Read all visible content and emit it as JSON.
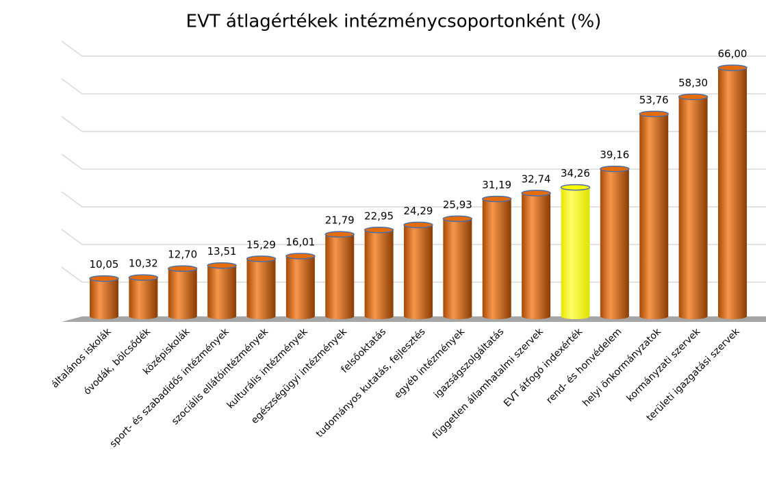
{
  "chart_data": {
    "type": "bar",
    "title": "EVT átlagértékek intézménycsoportonként (%)",
    "categories": [
      "általános iskolák",
      "óvodák, bölcsődék",
      "középiskolák",
      "sport- és szabadidős intézmények",
      "szociális ellátóintézmények",
      "kulturális intézmények",
      "egészségügyi intézmények",
      "felsőoktatás",
      "tudományos kutatás, fejlesztés",
      "egyéb intézmények",
      "igazságszolgáltatás",
      "független államhatalmi szervek",
      "EVT átfogó indexérték",
      "rend- és honvédelem",
      "helyi önkormányzatok",
      "kormányzati szervek",
      "területi igazgatási szervek"
    ],
    "values": [
      10.05,
      10.32,
      12.7,
      13.51,
      15.29,
      16.01,
      21.79,
      22.95,
      24.29,
      25.93,
      31.19,
      32.74,
      34.26,
      39.16,
      53.76,
      58.3,
      66.0
    ],
    "value_labels": [
      "10,05",
      "10,32",
      "12,70",
      "13,51",
      "15,29",
      "16,01",
      "21,79",
      "22,95",
      "24,29",
      "25,93",
      "31,19",
      "32,74",
      "34,26",
      "39,16",
      "53,76",
      "58,30",
      "66,00"
    ],
    "colors": [
      "#e46c0a",
      "#e46c0a",
      "#e46c0a",
      "#e46c0a",
      "#e46c0a",
      "#e46c0a",
      "#e46c0a",
      "#e46c0a",
      "#e46c0a",
      "#e46c0a",
      "#e46c0a",
      "#e46c0a",
      "#ffff00",
      "#e46c0a",
      "#e46c0a",
      "#e46c0a",
      "#e46c0a"
    ],
    "ylim": [
      0,
      70
    ],
    "yticks": [
      0,
      10,
      20,
      30,
      40,
      50,
      60,
      70
    ],
    "grid": true
  }
}
